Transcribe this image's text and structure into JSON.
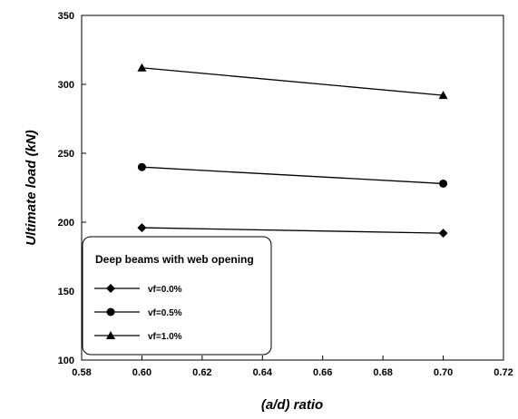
{
  "chart_data": {
    "type": "line",
    "title": "",
    "xlabel": "(a/d) ratio",
    "ylabel": "Ultimate load (kN)",
    "xlim": [
      0.58,
      0.72
    ],
    "ylim": [
      100,
      350
    ],
    "xticks": [
      "0.58",
      "0.60",
      "0.62",
      "0.64",
      "0.66",
      "0.68",
      "0.70",
      "0.72"
    ],
    "yticks": [
      "100",
      "150",
      "200",
      "250",
      "300",
      "350"
    ],
    "grid": false,
    "legend": {
      "title": "Deep beams with web opening",
      "placement": "bottom-left"
    },
    "series": [
      {
        "name": "vf=0.0%",
        "marker": "diamond",
        "x": [
          0.6,
          0.7
        ],
        "y": [
          196,
          192
        ]
      },
      {
        "name": "vf=0.5%",
        "marker": "circle",
        "x": [
          0.6,
          0.7
        ],
        "y": [
          240,
          228
        ]
      },
      {
        "name": "vf=1.0%",
        "marker": "triangle",
        "x": [
          0.6,
          0.7
        ],
        "y": [
          312,
          292
        ]
      }
    ]
  }
}
